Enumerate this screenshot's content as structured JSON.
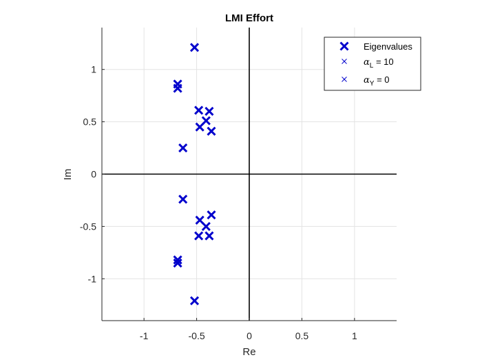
{
  "chart_data": {
    "type": "scatter",
    "title": "LMI Effort",
    "xlabel": "Re",
    "ylabel": "Im",
    "xlim": [
      -1.4,
      1.4
    ],
    "ylim": [
      -1.4,
      1.4
    ],
    "xticks": [
      -1,
      -0.5,
      0,
      0.5,
      1
    ],
    "xtick_labels": [
      "-1",
      "-0.5",
      "0",
      "0.5",
      "1"
    ],
    "yticks": [
      -1,
      -0.5,
      0,
      0.5,
      1
    ],
    "ytick_labels": [
      "-1",
      "-0.5",
      "0",
      "0.5",
      "1"
    ],
    "grid": true,
    "legend_position": "top-right",
    "color": "#0000cc",
    "series": [
      {
        "name": "Eigenvalues",
        "marker": "x",
        "points": [
          [
            -0.52,
            1.21
          ],
          [
            -0.68,
            0.86
          ],
          [
            -0.68,
            0.82
          ],
          [
            -0.48,
            0.61
          ],
          [
            -0.38,
            0.6
          ],
          [
            -0.41,
            0.51
          ],
          [
            -0.47,
            0.45
          ],
          [
            -0.36,
            0.41
          ],
          [
            -0.63,
            0.25
          ],
          [
            -0.63,
            -0.24
          ],
          [
            -0.36,
            -0.39
          ],
          [
            -0.47,
            -0.44
          ],
          [
            -0.41,
            -0.5
          ],
          [
            -0.48,
            -0.59
          ],
          [
            -0.38,
            -0.59
          ],
          [
            -0.68,
            -0.82
          ],
          [
            -0.68,
            -0.85
          ],
          [
            -0.52,
            -1.21
          ]
        ]
      }
    ],
    "legend": {
      "entries": [
        {
          "label": "Eigenvalues",
          "marker": "x-bold"
        },
        {
          "symbol": "α",
          "subscript": "L",
          "suffix": " = 10",
          "marker": "x-thin"
        },
        {
          "symbol": "α",
          "subscript": "Y",
          "suffix": " = 0",
          "marker": "x-thin"
        }
      ]
    }
  }
}
